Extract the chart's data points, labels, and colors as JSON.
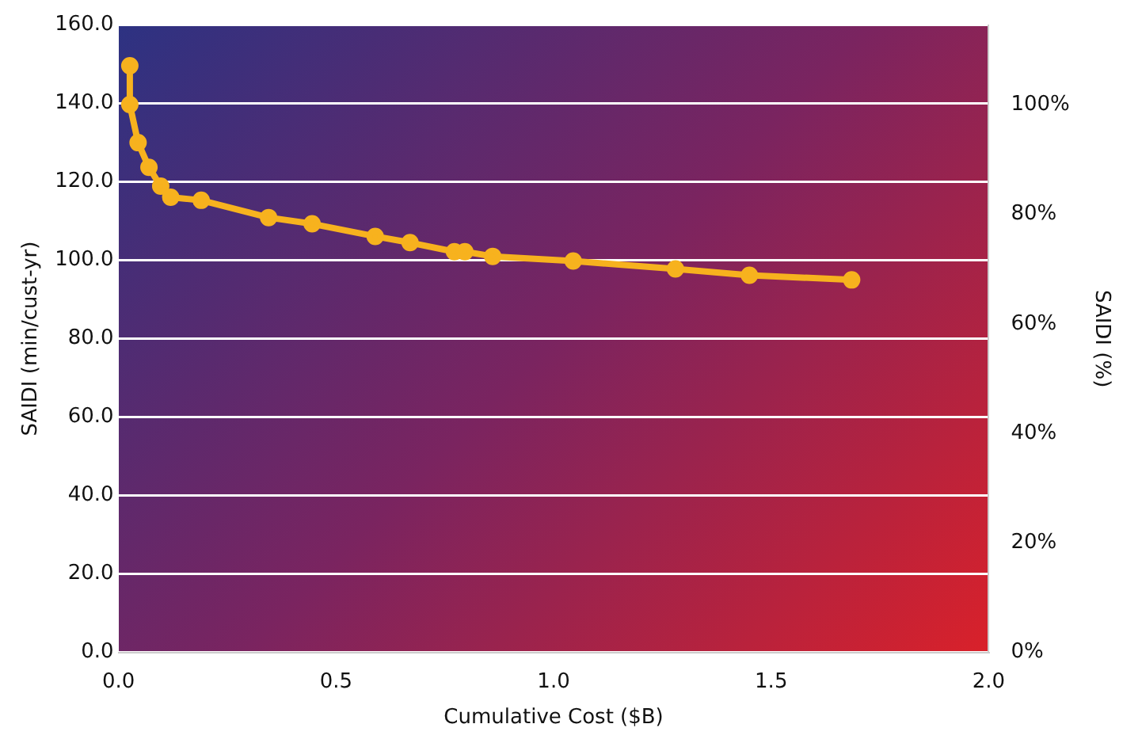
{
  "chart_data": {
    "type": "line",
    "xlabel": "Cumulative Cost ($B)",
    "ylabel": "SAIDI (min/cust-yr)",
    "y2label": "SAIDI (%)",
    "series": [
      {
        "color": "#f7b21e",
        "x": [
          0.026,
          0.026,
          0.045,
          0.07,
          0.097,
          0.12,
          0.19,
          0.345,
          0.445,
          0.59,
          0.67,
          0.772,
          0.796,
          0.86,
          1.045,
          1.28,
          1.45,
          1.685
        ],
        "values": [
          149.6,
          139.7,
          130,
          123.7,
          118.9,
          116.1,
          115.3,
          110.9,
          109.3,
          106.1,
          104.5,
          102.2,
          102.2,
          101.0,
          99.8,
          97.8,
          96.2,
          95.0
        ]
      }
    ],
    "xlim": [
      0,
      2
    ],
    "xticks": [
      {
        "value": 0,
        "label": "0.0"
      },
      {
        "value": 0.5,
        "label": "0.5"
      },
      {
        "value": 1,
        "label": "1.0"
      },
      {
        "value": 1.5,
        "label": "1.5"
      },
      {
        "value": 2,
        "label": "2.0"
      }
    ],
    "ylim": [
      0,
      160
    ],
    "yticks": [
      {
        "value": 0,
        "label": "0.0"
      },
      {
        "value": 20,
        "label": "20.0"
      },
      {
        "value": 40,
        "label": "40.0"
      },
      {
        "value": 60,
        "label": "60.0"
      },
      {
        "value": 80,
        "label": "80.0"
      },
      {
        "value": 100,
        "label": "100.0"
      },
      {
        "value": 120,
        "label": "120.0"
      },
      {
        "value": 140,
        "label": "140.0"
      },
      {
        "value": 160,
        "label": "160.0"
      }
    ],
    "y2lim": [
      0,
      114.6
    ],
    "y2ticks": [
      {
        "value": 0,
        "label": "0%"
      },
      {
        "value": 20,
        "label": "20%"
      },
      {
        "value": 40,
        "label": "40%"
      },
      {
        "value": 60,
        "label": "60%"
      },
      {
        "value": 80,
        "label": "80%"
      },
      {
        "value": 100,
        "label": "100%"
      }
    ],
    "grid": "y",
    "legend": false,
    "marker": "circle",
    "line_style": "solid"
  }
}
